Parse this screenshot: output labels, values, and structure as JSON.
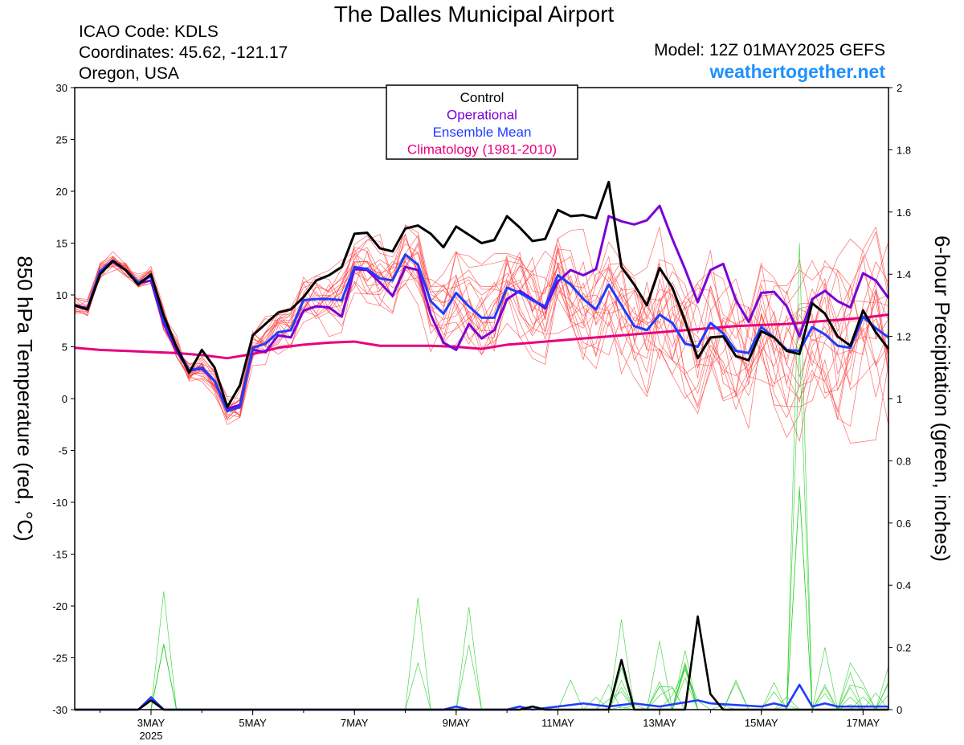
{
  "header": {
    "title": "The Dalles Municipal Airport",
    "icao": "ICAO Code: KDLS",
    "coords": "Coordinates: 45.62, -121.17",
    "region": "Oregon, USA",
    "model": "Model: 12Z 01MAY2025 GEFS",
    "site": "weathertogether.net"
  },
  "colors": {
    "control": "#000000",
    "operational": "#7a00d6",
    "mean": "#1f3cff",
    "climatology": "#e6007e",
    "members": "#ff3a3a",
    "precip": "#22cc22",
    "site": "#1e90ff"
  },
  "chart_data": {
    "type": "line",
    "title": "The Dalles Municipal Airport",
    "ylabel": "850 hPa Temperature (red, °C)",
    "y2label": "6-hour Precipitation (green, inches)",
    "ylim": [
      -30,
      30
    ],
    "y2lim": [
      0,
      2
    ],
    "yticks": [
      "30",
      "25",
      "20",
      "15",
      "10",
      "5",
      "0",
      "-5",
      "-10",
      "-15",
      "-20",
      "-25",
      "-30"
    ],
    "y2ticks": [
      "2",
      "1.8",
      "1.6",
      "1.4",
      "1.2",
      "1",
      "0.8",
      "0.6",
      "0.4",
      "0.2",
      "0"
    ],
    "xlim": [
      1.5,
      17.5
    ],
    "x_unit": "day of May 2025, 6-hour steps",
    "xticks": [
      {
        "x": 3,
        "label": "3MAY",
        "sub": "2025"
      },
      {
        "x": 5,
        "label": "5MAY",
        "sub": ""
      },
      {
        "x": 7,
        "label": "7MAY",
        "sub": ""
      },
      {
        "x": 9,
        "label": "9MAY",
        "sub": ""
      },
      {
        "x": 11,
        "label": "11MAY",
        "sub": ""
      },
      {
        "x": 13,
        "label": "13MAY",
        "sub": ""
      },
      {
        "x": 15,
        "label": "15MAY",
        "sub": ""
      },
      {
        "x": 17,
        "label": "17MAY",
        "sub": ""
      }
    ],
    "legend": [
      "Control",
      "Operational",
      "Ensemble Mean",
      "Climatology (1981-2010)"
    ],
    "legend_position": "top-center",
    "series": [
      {
        "name": "Control",
        "axis": "temp",
        "points": [
          [
            1.5,
            9
          ],
          [
            1.75,
            8.6
          ],
          [
            2,
            12
          ],
          [
            2.25,
            13.3
          ],
          [
            2.5,
            12.4
          ],
          [
            2.75,
            11
          ],
          [
            3,
            12
          ],
          [
            3.25,
            8
          ],
          [
            3.5,
            5
          ],
          [
            3.75,
            2.5
          ],
          [
            4,
            4.7
          ],
          [
            4.25,
            3
          ],
          [
            4.5,
            -0.8
          ],
          [
            4.75,
            1.3
          ],
          [
            5,
            6.1
          ],
          [
            5.25,
            7.2
          ],
          [
            5.5,
            8.3
          ],
          [
            5.75,
            8.6
          ],
          [
            6,
            9.8
          ],
          [
            6.25,
            11.4
          ],
          [
            6.5,
            11.9
          ],
          [
            6.75,
            12.7
          ],
          [
            7,
            15.9
          ],
          [
            7.25,
            16
          ],
          [
            7.5,
            14.5
          ],
          [
            7.75,
            14.2
          ],
          [
            8,
            16.4
          ],
          [
            8.25,
            16.7
          ],
          [
            8.5,
            15.9
          ],
          [
            8.75,
            14.6
          ],
          [
            9,
            16.6
          ],
          [
            9.25,
            15.8
          ],
          [
            9.5,
            15
          ],
          [
            9.75,
            15.3
          ],
          [
            10,
            17.6
          ],
          [
            10.25,
            16.5
          ],
          [
            10.5,
            15.2
          ],
          [
            10.75,
            15.4
          ],
          [
            11,
            18.2
          ],
          [
            11.25,
            17.6
          ],
          [
            11.5,
            17.7
          ],
          [
            11.75,
            17.4
          ],
          [
            12,
            20.9
          ],
          [
            12.25,
            12.7
          ],
          [
            12.5,
            11
          ],
          [
            12.75,
            9
          ],
          [
            13,
            12.6
          ],
          [
            13.25,
            10.7
          ],
          [
            13.5,
            7.5
          ],
          [
            13.75,
            3.9
          ],
          [
            14,
            5.9
          ],
          [
            14.25,
            6
          ],
          [
            14.5,
            4.1
          ],
          [
            14.75,
            3.7
          ],
          [
            15,
            6.5
          ],
          [
            15.25,
            5.9
          ],
          [
            15.5,
            4.6
          ],
          [
            15.75,
            4.3
          ],
          [
            16,
            9.2
          ],
          [
            16.25,
            8.2
          ],
          [
            16.5,
            6
          ],
          [
            16.75,
            5.1
          ],
          [
            17,
            8.5
          ],
          [
            17.25,
            6.4
          ],
          [
            17.5,
            4.8
          ]
        ]
      },
      {
        "name": "Operational",
        "axis": "temp",
        "points": [
          [
            1.5,
            9
          ],
          [
            1.75,
            8.7
          ],
          [
            2,
            12.3
          ],
          [
            2.25,
            13.2
          ],
          [
            2.5,
            12.4
          ],
          [
            2.75,
            11.1
          ],
          [
            3,
            11.4
          ],
          [
            3.25,
            7.2
          ],
          [
            3.5,
            4.6
          ],
          [
            3.75,
            2.7
          ],
          [
            4,
            2.9
          ],
          [
            4.25,
            1.7
          ],
          [
            4.5,
            -1
          ],
          [
            4.75,
            -0.6
          ],
          [
            5,
            4.7
          ],
          [
            5.25,
            4.5
          ],
          [
            5.5,
            6.1
          ],
          [
            5.75,
            5.9
          ],
          [
            6,
            8.5
          ],
          [
            6.25,
            8.9
          ],
          [
            6.5,
            8.8
          ],
          [
            6.75,
            7.9
          ],
          [
            7,
            12.5
          ],
          [
            7.25,
            12.4
          ],
          [
            7.5,
            11.2
          ],
          [
            7.75,
            9.9
          ],
          [
            8,
            12.7
          ],
          [
            8.25,
            12.4
          ],
          [
            8.5,
            8.1
          ],
          [
            8.75,
            5.4
          ],
          [
            9,
            4.7
          ],
          [
            9.25,
            7.2
          ],
          [
            9.5,
            5.8
          ],
          [
            9.75,
            6.6
          ],
          [
            10,
            9.6
          ],
          [
            10.25,
            10.4
          ],
          [
            10.5,
            9.6
          ],
          [
            10.75,
            8.7
          ],
          [
            11,
            11.3
          ],
          [
            11.25,
            12.4
          ],
          [
            11.5,
            11.9
          ],
          [
            11.75,
            12.5
          ],
          [
            12,
            17.6
          ],
          [
            12.25,
            17.1
          ],
          [
            12.5,
            16.8
          ],
          [
            12.75,
            17.2
          ],
          [
            13,
            18.6
          ],
          [
            13.25,
            15.4
          ],
          [
            13.5,
            12.5
          ],
          [
            13.75,
            9.3
          ],
          [
            14,
            12.4
          ],
          [
            14.25,
            13
          ],
          [
            14.5,
            9.5
          ],
          [
            14.75,
            7.4
          ],
          [
            15,
            10.2
          ],
          [
            15.25,
            10.3
          ],
          [
            15.5,
            8.9
          ],
          [
            15.75,
            6
          ],
          [
            16,
            9.6
          ],
          [
            16.25,
            10.4
          ],
          [
            16.5,
            9.4
          ],
          [
            16.75,
            8.8
          ],
          [
            17,
            12.1
          ],
          [
            17.25,
            11.4
          ],
          [
            17.5,
            9.7
          ]
        ]
      },
      {
        "name": "Ensemble Mean",
        "axis": "temp",
        "points": [
          [
            1.5,
            9
          ],
          [
            1.75,
            8.7
          ],
          [
            2,
            12.3
          ],
          [
            2.25,
            13.3
          ],
          [
            2.5,
            12.4
          ],
          [
            2.75,
            11.2
          ],
          [
            3,
            11.8
          ],
          [
            3.25,
            7.5
          ],
          [
            3.5,
            5
          ],
          [
            3.75,
            2.7
          ],
          [
            4,
            3
          ],
          [
            4.25,
            1.7
          ],
          [
            4.5,
            -1.2
          ],
          [
            4.75,
            -0.8
          ],
          [
            5,
            4.9
          ],
          [
            5.25,
            5.3
          ],
          [
            5.5,
            6.4
          ],
          [
            5.75,
            6.6
          ],
          [
            6,
            9.5
          ],
          [
            6.25,
            9.6
          ],
          [
            6.5,
            9.6
          ],
          [
            6.75,
            9.5
          ],
          [
            7,
            12.7
          ],
          [
            7.25,
            12.5
          ],
          [
            7.5,
            11.6
          ],
          [
            7.75,
            11.4
          ],
          [
            8,
            13.9
          ],
          [
            8.25,
            12.9
          ],
          [
            8.5,
            9.4
          ],
          [
            8.75,
            8.2
          ],
          [
            9,
            10.2
          ],
          [
            9.25,
            8.9
          ],
          [
            9.5,
            7.8
          ],
          [
            9.75,
            7.8
          ],
          [
            10,
            10.7
          ],
          [
            10.25,
            10.2
          ],
          [
            10.5,
            9.5
          ],
          [
            10.75,
            8.9
          ],
          [
            11,
            11.9
          ],
          [
            11.25,
            11
          ],
          [
            11.5,
            9.6
          ],
          [
            11.75,
            8.6
          ],
          [
            12,
            11
          ],
          [
            12.25,
            9
          ],
          [
            12.5,
            7
          ],
          [
            12.75,
            6.6
          ],
          [
            13,
            8.1
          ],
          [
            13.25,
            7.3
          ],
          [
            13.5,
            5.3
          ],
          [
            13.75,
            5
          ],
          [
            14,
            7.3
          ],
          [
            14.25,
            6.3
          ],
          [
            14.5,
            4.6
          ],
          [
            14.75,
            4.4
          ],
          [
            15,
            6.9
          ],
          [
            15.25,
            5.9
          ],
          [
            15.5,
            4.7
          ],
          [
            15.75,
            4.6
          ],
          [
            16,
            6.9
          ],
          [
            16.25,
            6.2
          ],
          [
            16.5,
            5.1
          ],
          [
            16.75,
            4.9
          ],
          [
            17,
            7.9
          ],
          [
            17.25,
            6.8
          ],
          [
            17.5,
            5.9
          ]
        ]
      },
      {
        "name": "Climatology (1981-2010)",
        "axis": "temp",
        "points": [
          [
            1.5,
            4.9
          ],
          [
            2,
            4.7
          ],
          [
            2.5,
            4.6
          ],
          [
            3,
            4.5
          ],
          [
            3.5,
            4.4
          ],
          [
            4,
            4.2
          ],
          [
            4.5,
            3.9
          ],
          [
            5,
            4.3
          ],
          [
            5.5,
            4.9
          ],
          [
            6,
            5.2
          ],
          [
            6.5,
            5.4
          ],
          [
            7,
            5.5
          ],
          [
            7.5,
            5.1
          ],
          [
            8,
            5.1
          ],
          [
            8.5,
            5.1
          ],
          [
            9,
            5
          ],
          [
            9.5,
            4.8
          ],
          [
            10,
            5.2
          ],
          [
            10.5,
            5.4
          ],
          [
            11,
            5.6
          ],
          [
            11.5,
            5.8
          ],
          [
            12,
            6
          ],
          [
            12.5,
            6.2
          ],
          [
            13,
            6.4
          ],
          [
            13.5,
            6.6
          ],
          [
            14,
            6.8
          ],
          [
            14.5,
            7
          ],
          [
            15,
            7.1
          ],
          [
            15.5,
            7.2
          ],
          [
            16,
            7.4
          ],
          [
            16.5,
            7.6
          ],
          [
            17,
            7.8
          ],
          [
            17.5,
            8.1
          ]
        ]
      },
      {
        "name": "Control",
        "axis": "precip",
        "points": [
          [
            1.5,
            0
          ],
          [
            2.75,
            0
          ],
          [
            3,
            0.03
          ],
          [
            3.25,
            0
          ],
          [
            3.5,
            0
          ],
          [
            10.25,
            0
          ],
          [
            10.5,
            0.01
          ],
          [
            10.75,
            0
          ],
          [
            12,
            0
          ],
          [
            12.25,
            0.16
          ],
          [
            12.5,
            0
          ],
          [
            13.5,
            0
          ],
          [
            13.75,
            0.3
          ],
          [
            14,
            0.05
          ],
          [
            14.25,
            0
          ],
          [
            17.5,
            0
          ]
        ]
      },
      {
        "name": "Ensemble Mean",
        "axis": "precip",
        "points": [
          [
            1.5,
            0
          ],
          [
            2.75,
            0
          ],
          [
            3,
            0.04
          ],
          [
            3.25,
            0
          ],
          [
            3.5,
            0
          ],
          [
            8.75,
            0
          ],
          [
            9,
            0.01
          ],
          [
            9.25,
            0
          ],
          [
            10,
            0
          ],
          [
            10.25,
            0.01
          ],
          [
            10.5,
            0
          ],
          [
            11.5,
            0.02
          ],
          [
            12,
            0.01
          ],
          [
            12.5,
            0.02
          ],
          [
            13,
            0.01
          ],
          [
            13.75,
            0.03
          ],
          [
            14,
            0.02
          ],
          [
            15,
            0.01
          ],
          [
            15.25,
            0.02
          ],
          [
            15.5,
            0.01
          ],
          [
            15.75,
            0.08
          ],
          [
            16,
            0.01
          ],
          [
            16.25,
            0.02
          ],
          [
            16.5,
            0.01
          ],
          [
            17.5,
            0.01
          ]
        ]
      }
    ]
  }
}
